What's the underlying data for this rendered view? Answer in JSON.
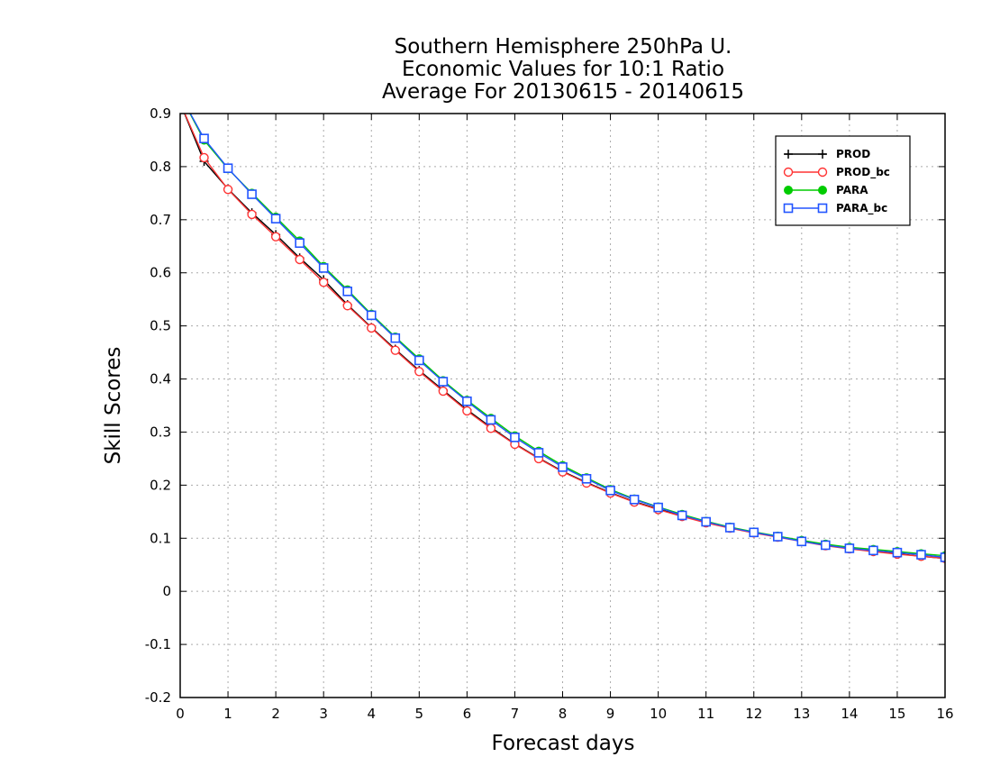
{
  "chart_data": {
    "type": "line",
    "title": [
      "Southern Hemisphere 250hPa U.",
      "Economic Values for 10:1 Ratio",
      "Average For 20130615 - 20140615"
    ],
    "xlabel": "Forecast days",
    "ylabel": "Skill Scores",
    "xlim": [
      0,
      16
    ],
    "ylim": [
      -0.2,
      0.9
    ],
    "xticks": [
      0,
      1,
      2,
      3,
      4,
      5,
      6,
      7,
      8,
      9,
      10,
      11,
      12,
      13,
      14,
      15,
      16
    ],
    "yticks": [
      -0.2,
      -0.1,
      0,
      0.1,
      0.2,
      0.3,
      0.4,
      0.5,
      0.6,
      0.7,
      0.8,
      0.9
    ],
    "ytick_labels": [
      "-0.2",
      "-0.1",
      "0",
      "0.1",
      "0.2",
      "0.3",
      "0.4",
      "0.5",
      "0.6",
      "0.7",
      "0.8",
      "0.9"
    ],
    "grid": true,
    "legend_position": "top-right",
    "x": [
      0,
      0.5,
      1,
      1.5,
      2,
      2.5,
      3,
      3.5,
      4,
      4.5,
      5,
      5.5,
      6,
      6.5,
      7,
      7.5,
      8,
      8.5,
      9,
      9.5,
      10,
      10.5,
      11,
      11.5,
      12,
      12.5,
      13,
      13.5,
      14,
      14.5,
      15,
      15.5,
      16
    ],
    "series": [
      {
        "name": "PROD",
        "color": "#000000",
        "marker": "plus",
        "values": [
          0.92,
          0.81,
          0.758,
          0.713,
          0.672,
          0.628,
          0.587,
          0.54,
          0.497,
          0.456,
          0.416,
          0.379,
          0.342,
          0.309,
          0.278,
          0.251,
          0.226,
          0.205,
          0.186,
          0.169,
          0.155,
          0.142,
          0.13,
          0.12,
          0.111,
          0.103,
          0.095,
          0.087,
          0.081,
          0.076,
          0.071,
          0.066,
          0.062
        ]
      },
      {
        "name": "PROD_bc",
        "color": "#ff3333",
        "marker": "circle",
        "values": [
          0.92,
          0.817,
          0.757,
          0.71,
          0.668,
          0.625,
          0.582,
          0.538,
          0.496,
          0.454,
          0.414,
          0.377,
          0.34,
          0.307,
          0.277,
          0.25,
          0.225,
          0.204,
          0.185,
          0.168,
          0.154,
          0.141,
          0.129,
          0.119,
          0.11,
          0.102,
          0.094,
          0.086,
          0.08,
          0.075,
          0.07,
          0.066,
          0.062
        ]
      },
      {
        "name": "PARA",
        "color": "#00cc00",
        "marker": "dot",
        "values": [
          0.935,
          0.85,
          0.796,
          0.75,
          0.705,
          0.66,
          0.612,
          0.568,
          0.522,
          0.479,
          0.438,
          0.397,
          0.36,
          0.326,
          0.293,
          0.264,
          0.237,
          0.214,
          0.192,
          0.174,
          0.159,
          0.145,
          0.132,
          0.121,
          0.112,
          0.104,
          0.096,
          0.089,
          0.083,
          0.079,
          0.075,
          0.071,
          0.067
        ]
      },
      {
        "name": "PARA_bc",
        "color": "#2255ff",
        "marker": "square",
        "values": [
          0.935,
          0.853,
          0.797,
          0.748,
          0.702,
          0.656,
          0.609,
          0.565,
          0.52,
          0.477,
          0.435,
          0.395,
          0.358,
          0.323,
          0.29,
          0.261,
          0.234,
          0.212,
          0.19,
          0.173,
          0.158,
          0.143,
          0.131,
          0.12,
          0.111,
          0.103,
          0.094,
          0.087,
          0.081,
          0.077,
          0.073,
          0.069,
          0.064
        ]
      }
    ]
  }
}
